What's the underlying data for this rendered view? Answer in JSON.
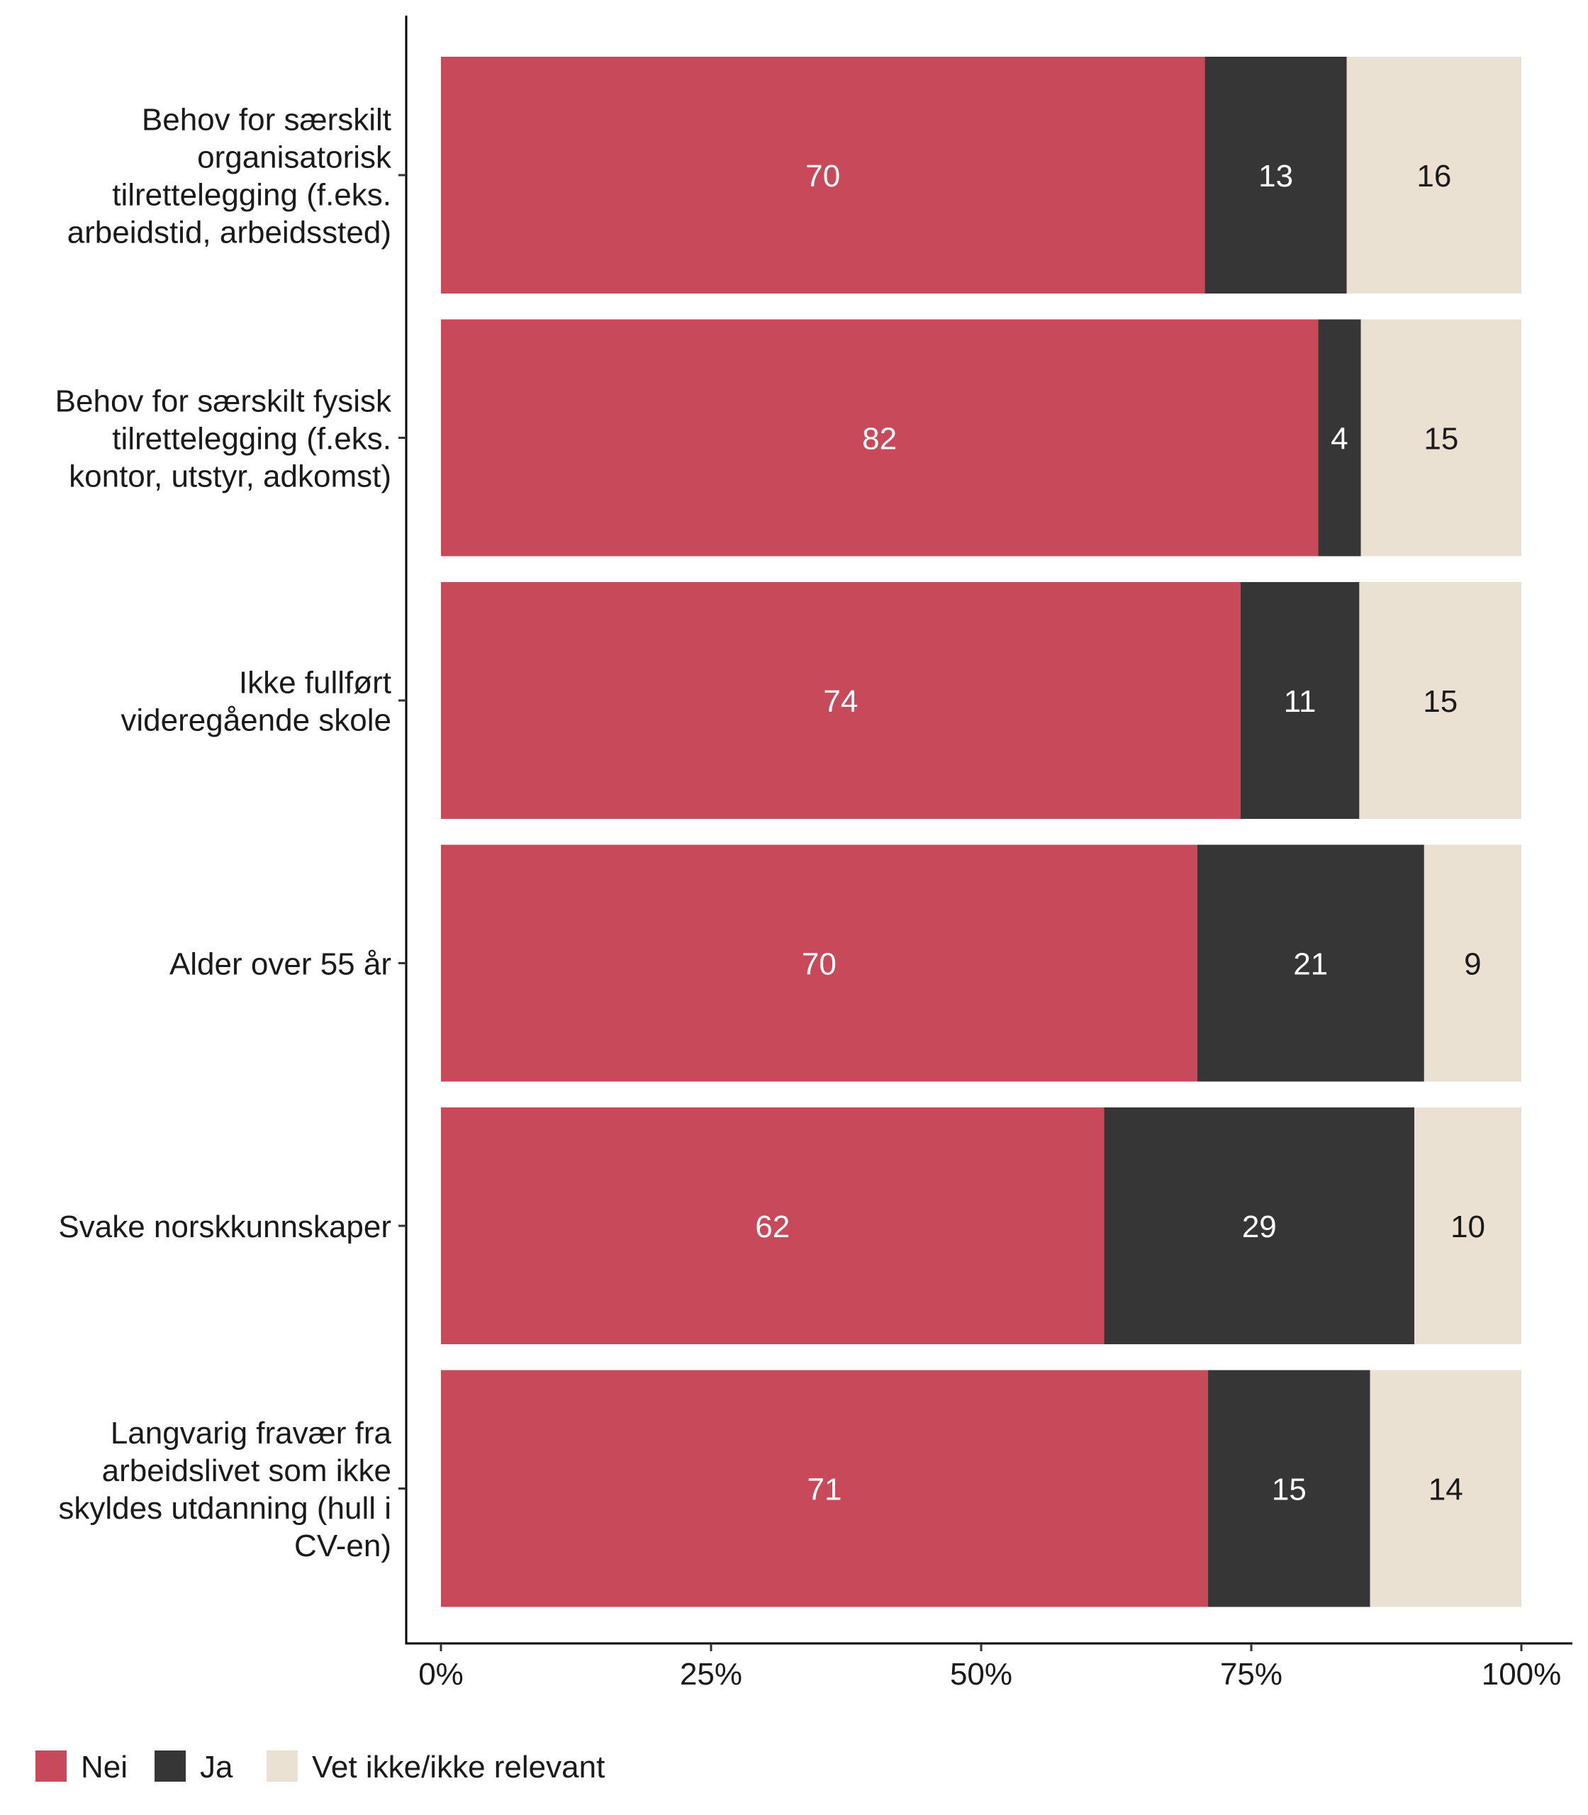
{
  "chart_data": {
    "type": "bar",
    "orientation": "horizontal",
    "stacked": true,
    "categories": [
      "Behov for særskilt organisatorisk tilrettelegging (f.eks. arbeidstid, arbeidssted)",
      "Behov for særskilt fysisk tilrettelegging (f.eks. kontor, utstyr, adkomst)",
      "Ikke fullført videregående skole",
      "Alder over 55 år",
      "Svake norskkunnskaper",
      "Langvarig fravær fra arbeidslivet som ikke skyldes utdanning (hull i CV-en)"
    ],
    "category_lines": [
      [
        "Behov for særskilt",
        "organisatorisk",
        "tilrettelegging (f.eks.",
        "arbeidstid, arbeidssted)"
      ],
      [
        "Behov for særskilt fysisk",
        "tilrettelegging (f.eks.",
        "kontor, utstyr, adkomst)"
      ],
      [
        "Ikke fullført",
        "videregående skole"
      ],
      [
        "Alder over 55 år"
      ],
      [
        "Svake norskkunnskaper"
      ],
      [
        "Langvarig fravær fra",
        "arbeidslivet som ikke",
        "skyldes utdanning (hull i",
        "CV-en)"
      ]
    ],
    "series": [
      {
        "name": "Nei",
        "color": "#c84a5a",
        "label_color": "#ffffff",
        "values": [
          70,
          82,
          74,
          70,
          62,
          71
        ]
      },
      {
        "name": "Ja",
        "color": "#363636",
        "label_color": "#ffffff",
        "values": [
          13,
          4,
          11,
          21,
          29,
          15
        ]
      },
      {
        "name": "Vet ikke/ikke relevant",
        "color": "#ebe1d3",
        "label_color": "#1a1a1a",
        "values": [
          16,
          15,
          15,
          9,
          10,
          14
        ]
      }
    ],
    "xlim": [
      0,
      100
    ],
    "x_ticks": [
      "0%",
      "25%",
      "50%",
      "75%",
      "100%"
    ],
    "xlabel": "",
    "ylabel": "",
    "title": "",
    "grid": false,
    "legend_position": "bottom-left"
  }
}
